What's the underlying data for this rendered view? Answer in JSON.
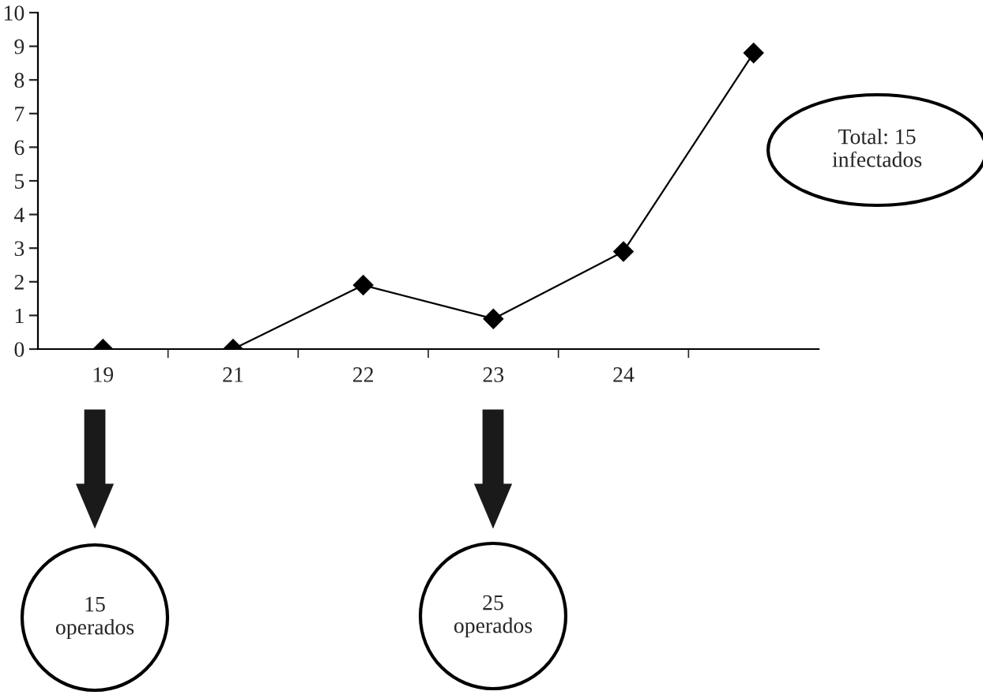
{
  "chart_data": {
    "type": "line",
    "categories": [
      "19",
      "21",
      "22",
      "23",
      "24",
      null
    ],
    "series": [
      {
        "color": "#000000",
        "values": [
          0,
          0,
          1.9,
          0.9,
          2.9,
          8.8
        ]
      }
    ],
    "ylim": [
      0,
      10
    ],
    "yticks": [
      0,
      1,
      2,
      3,
      4,
      5,
      6,
      7,
      8,
      9,
      10
    ],
    "marker": "diamond",
    "line_style": "solid",
    "grid": false,
    "annotations": [
      "Total: 15\ninfectados",
      "15\noperados",
      "25\noperados"
    ]
  }
}
